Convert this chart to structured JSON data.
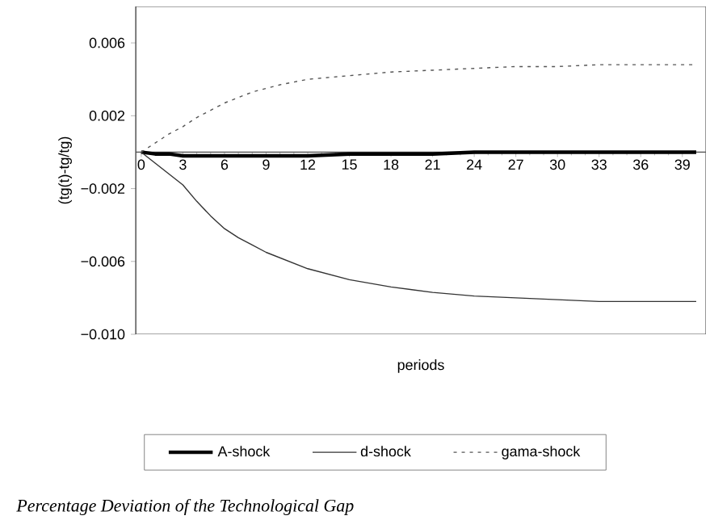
{
  "chart_data": {
    "type": "line",
    "xlabel": "periods",
    "ylabel": "(tg(t)-tg/tg)",
    "x": [
      0,
      1,
      2,
      3,
      4,
      5,
      6,
      7,
      8,
      9,
      10,
      12,
      15,
      18,
      21,
      24,
      27,
      30,
      33,
      36,
      39,
      40
    ],
    "series": [
      {
        "name": "A-shock",
        "color": "#000000",
        "line_style": "solid",
        "values": [
          0,
          -0.0001,
          -0.0001,
          -0.0002,
          -0.0002,
          -0.0002,
          -0.0002,
          -0.0002,
          -0.0002,
          -0.0002,
          -0.0002,
          -0.0002,
          -0.0001,
          -0.0001,
          -0.0001,
          0,
          0,
          0,
          0,
          0,
          0,
          0
        ]
      },
      {
        "name": "d-shock",
        "color": "#333333",
        "line_style": "solid",
        "values": [
          0,
          -0.0006,
          -0.0012,
          -0.0018,
          -0.0027,
          -0.0035,
          -0.0042,
          -0.0047,
          -0.0051,
          -0.0055,
          -0.0058,
          -0.0064,
          -0.007,
          -0.0074,
          -0.0077,
          -0.0079,
          -0.008,
          -0.0081,
          -0.0082,
          -0.0082,
          -0.0082,
          -0.0082
        ]
      },
      {
        "name": "gama-shock",
        "color": "#555555",
        "line_style": "dashed",
        "values": [
          0,
          0.0005,
          0.001,
          0.0014,
          0.0019,
          0.0023,
          0.0027,
          0.003,
          0.0033,
          0.0035,
          0.0037,
          0.004,
          0.0042,
          0.0044,
          0.0045,
          0.0046,
          0.0047,
          0.0047,
          0.0048,
          0.0048,
          0.0048,
          0.0048
        ]
      }
    ],
    "xlim": [
      -0.4,
      40.7
    ],
    "xticks": [
      0,
      3,
      6,
      9,
      12,
      15,
      18,
      21,
      24,
      27,
      30,
      33,
      36,
      39
    ],
    "ylim": [
      -0.01,
      0.008
    ],
    "yticks": [
      {
        "value": 0.006,
        "label": "0.006"
      },
      {
        "value": 0.002,
        "label": "0.002"
      },
      {
        "value": -0.002,
        "label": "−0.002"
      },
      {
        "value": -0.006,
        "label": "−0.006"
      },
      {
        "value": -0.01,
        "label": "−0.010"
      }
    ],
    "grid": false,
    "legend": "bottom",
    "marker": "none",
    "annotations": [
      "Percentage Deviation of the Technological Gap"
    ]
  }
}
